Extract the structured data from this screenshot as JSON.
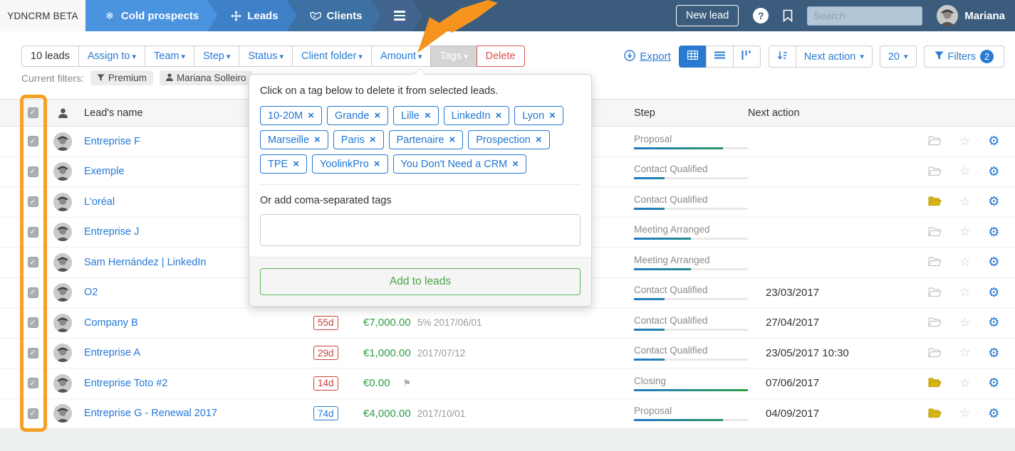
{
  "navbar": {
    "brand": "YDNCRM BETA",
    "tabs": [
      {
        "label": "Cold prospects",
        "icon": "snowflake-icon"
      },
      {
        "label": "Leads",
        "icon": "move-icon"
      },
      {
        "label": "Clients",
        "icon": "handshake-icon"
      }
    ],
    "new_lead_label": "New lead",
    "search_placeholder": "Search",
    "user_name": "Mariana"
  },
  "toolbar": {
    "count_label": "10 leads",
    "assign_to": "Assign to",
    "team": "Team",
    "step": "Step",
    "status": "Status",
    "client_folder": "Client folder",
    "amount": "Amount",
    "tags": "Tags",
    "delete": "Delete",
    "export": "Export",
    "sort_by": "Next action",
    "page_size": "20",
    "filters": "Filters",
    "filters_count": "2"
  },
  "current_filters": {
    "label": "Current filters:",
    "pills": [
      {
        "icon": "filter-icon",
        "label": "Premium"
      },
      {
        "icon": "user-icon",
        "label": "Mariana Solleiro"
      }
    ]
  },
  "popover": {
    "title": "Click on a tag below to delete it from selected leads.",
    "tags": [
      "10-20M",
      "Grande",
      "Lille",
      "LinkedIn",
      "Lyon",
      "Marseille",
      "Paris",
      "Partenaire",
      "Prospection",
      "TPE",
      "YoolinkPro",
      "You Don't Need a CRM"
    ],
    "add_label": "Or add coma-separated tags",
    "input_value": "",
    "submit_label": "Add to leads"
  },
  "table": {
    "header": {
      "name": "Lead's name",
      "step": "Step",
      "next_action": "Next action"
    },
    "rows": [
      {
        "name": "Entreprise F",
        "badge": null,
        "amount": "",
        "amount_note": "",
        "flag": false,
        "step": {
          "label": "Proposal",
          "progress": 78
        },
        "next_action": "",
        "folder": "gray"
      },
      {
        "name": "Exemple",
        "badge": null,
        "amount": "",
        "amount_note": "",
        "flag": false,
        "step": {
          "label": "Contact Qualified",
          "progress": 27
        },
        "next_action": "",
        "folder": "gray"
      },
      {
        "name": "L'oréal",
        "badge": null,
        "amount": "",
        "amount_note": "",
        "flag": false,
        "step": {
          "label": "Contact Qualified",
          "progress": 27
        },
        "next_action": "",
        "folder": "yellow"
      },
      {
        "name": "Entreprise J",
        "badge": null,
        "amount": "",
        "amount_note": "",
        "flag": false,
        "step": {
          "label": "Meeting Arranged",
          "progress": 50
        },
        "next_action": "",
        "folder": "gray"
      },
      {
        "name": "Sam Hernández | LinkedIn",
        "badge": null,
        "amount": "",
        "amount_note": "",
        "flag": false,
        "step": {
          "label": "Meeting Arranged",
          "progress": 50
        },
        "next_action": "",
        "folder": "gray"
      },
      {
        "name": "O2",
        "badge": {
          "text": "",
          "color": "red"
        },
        "amount": "",
        "amount_note": "",
        "flag": false,
        "step": {
          "label": "Contact Qualified",
          "progress": 27
        },
        "next_action": "23/03/2017",
        "folder": "gray"
      },
      {
        "name": "Company B",
        "badge": {
          "text": "55d",
          "color": "red"
        },
        "amount": "€7,000.00",
        "amount_note": "5% 2017/06/01",
        "flag": false,
        "step": {
          "label": "Contact Qualified",
          "progress": 27
        },
        "next_action": "27/04/2017",
        "folder": "gray"
      },
      {
        "name": "Entreprise A",
        "badge": {
          "text": "29d",
          "color": "red"
        },
        "amount": "€1,000.00",
        "amount_note": "2017/07/12",
        "flag": false,
        "step": {
          "label": "Contact Qualified",
          "progress": 27
        },
        "next_action": "23/05/2017 10:30",
        "folder": "gray"
      },
      {
        "name": "Entreprise Toto #2",
        "badge": {
          "text": "14d",
          "color": "red"
        },
        "amount": "€0.00",
        "amount_note": "",
        "flag": true,
        "step": {
          "label": "Closing",
          "progress": 100
        },
        "next_action": "07/06/2017",
        "folder": "yellow"
      },
      {
        "name": "Entreprise G - Renewal 2017",
        "badge": {
          "text": "74d",
          "color": "blue"
        },
        "amount": "€4,000.00",
        "amount_note": "2017/10/01",
        "flag": false,
        "step": {
          "label": "Proposal",
          "progress": 78
        },
        "next_action": "04/09/2017",
        "folder": "yellow"
      }
    ]
  },
  "colors": {
    "navbar": "#3b5c7d",
    "active_tab": "#4a93df",
    "accent_blue": "#2a7ad2",
    "danger_red": "#d9534f",
    "success_green": "#2f9e44",
    "annotation_orange": "#f5a124",
    "progress_start": "#1d79c9",
    "progress_end": "#2f9e44"
  }
}
